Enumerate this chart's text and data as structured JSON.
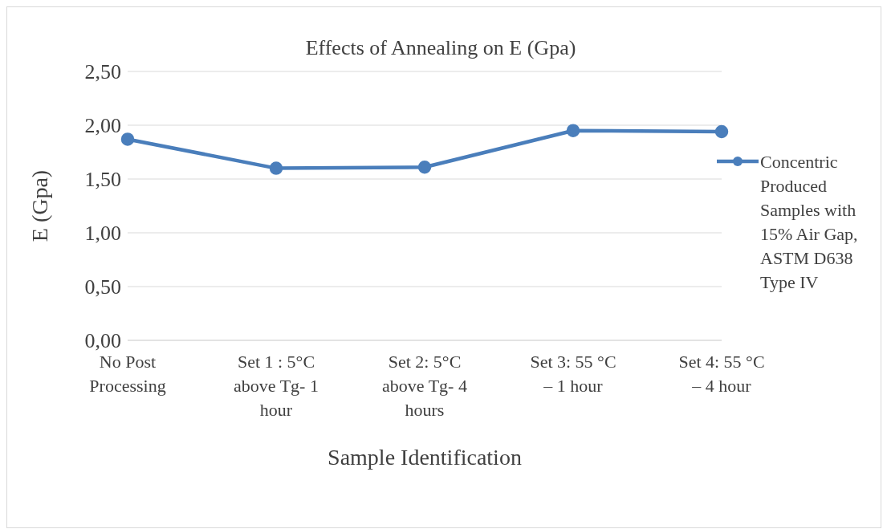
{
  "chart_data": {
    "type": "line",
    "title": "Effects of Annealing on E (Gpa)",
    "xlabel": "Sample Identification",
    "ylabel": "E (Gpa)",
    "categories": [
      "No Post Processing",
      "Set 1 : 5°C above Tg- 1 hour",
      "Set 2: 5°C above Tg- 4 hours",
      "Set 3: 55 °C – 1 hour",
      "Set 4: 55 °C – 4 hour"
    ],
    "series": [
      {
        "name": "Concentric Produced Samples with 15% Air Gap, ASTM D638 Type IV",
        "color": "#4a7ebb",
        "values": [
          1.87,
          1.6,
          1.61,
          1.95,
          1.94
        ]
      }
    ],
    "ylim": [
      0,
      2.5
    ],
    "yticks": [
      {
        "value": 0,
        "label": "0,00"
      },
      {
        "value": 0.5,
        "label": "0,50"
      },
      {
        "value": 1,
        "label": "1,00"
      },
      {
        "value": 1.5,
        "label": "1,50"
      },
      {
        "value": 2,
        "label": "2,00"
      },
      {
        "value": 2.5,
        "label": "2,50"
      }
    ],
    "grid": "y",
    "legend": "right",
    "marker": "circle",
    "line_style": "solid"
  }
}
